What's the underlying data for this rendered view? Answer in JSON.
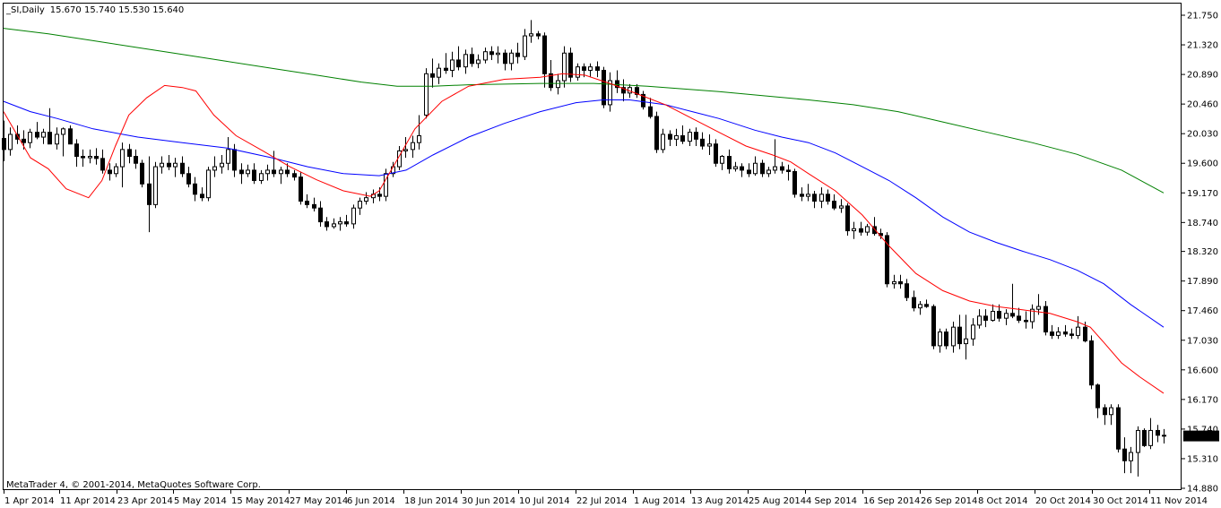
{
  "header": {
    "symbol": "_SI,Daily",
    "ohlc": "15.670 15.740 15.530 15.640"
  },
  "footer": {
    "copyright": "MetaTrader 4, © 2001-2014, MetaQuotes Software Corp."
  },
  "colors": {
    "background": "#ffffff",
    "candle": "#000000",
    "ma_fast": "#ff0000",
    "ma_mid": "#0000ff",
    "ma_slow": "#008000",
    "price_label_bg": "#000000",
    "price_label_fg": "#ffffff"
  },
  "chart_data": {
    "type": "candlestick",
    "ylim": [
      14.8,
      21.85
    ],
    "grid": false,
    "y_ticks": [
      "21.750",
      "21.320",
      "20.890",
      "20.460",
      "20.030",
      "19.600",
      "19.170",
      "18.740",
      "18.320",
      "17.890",
      "17.460",
      "17.030",
      "16.600",
      "16.170",
      "15.740",
      "15.310",
      "14.880"
    ],
    "x_ticks": [
      "1 Apr 2014",
      "11 Apr 2014",
      "23 Apr 2014",
      "5 May 2014",
      "15 May 2014",
      "27 May 2014",
      "6 Jun 2014",
      "18 Jun 2014",
      "30 Jun 2014",
      "10 Jul 2014",
      "22 Jul 2014",
      "1 Aug 2014",
      "13 Aug 2014",
      "25 Aug 2014",
      "4 Sep 2014",
      "16 Sep 2014",
      "26 Sep 2014",
      "8 Oct 2014",
      "20 Oct 2014",
      "30 Oct 2014",
      "11 Nov 2014"
    ],
    "last_price": "15.640",
    "candles": [
      [
        19.96,
        20.22,
        19.63,
        19.8
      ],
      [
        19.8,
        20.12,
        19.71,
        20.02
      ],
      [
        20.02,
        20.15,
        19.88,
        19.95
      ],
      [
        19.95,
        20.08,
        19.8,
        19.9
      ],
      [
        19.9,
        20.1,
        19.82,
        20.05
      ],
      [
        20.05,
        20.2,
        19.95,
        19.98
      ],
      [
        19.98,
        20.1,
        19.88,
        20.05
      ],
      [
        20.05,
        20.4,
        19.9,
        19.88
      ],
      [
        19.88,
        20.12,
        19.8,
        20.02
      ],
      [
        20.02,
        20.12,
        19.7,
        20.1
      ],
      [
        20.1,
        20.15,
        19.9,
        19.88
      ],
      [
        19.88,
        19.95,
        19.55,
        19.7
      ],
      [
        19.7,
        19.8,
        19.55,
        19.68
      ],
      [
        19.68,
        19.8,
        19.6,
        19.7
      ],
      [
        19.7,
        19.82,
        19.58,
        19.67
      ],
      [
        19.67,
        19.8,
        19.45,
        19.5
      ],
      [
        19.5,
        19.6,
        19.35,
        19.45
      ],
      [
        19.45,
        19.6,
        19.4,
        19.55
      ],
      [
        19.55,
        19.9,
        19.25,
        19.8
      ],
      [
        19.8,
        19.88,
        19.6,
        19.7
      ],
      [
        19.7,
        19.8,
        19.52,
        19.6
      ],
      [
        19.6,
        19.65,
        19.25,
        19.3
      ],
      [
        19.3,
        19.7,
        18.6,
        19.0
      ],
      [
        19.0,
        19.62,
        18.95,
        19.55
      ],
      [
        19.55,
        19.7,
        19.45,
        19.6
      ],
      [
        19.6,
        19.72,
        19.5,
        19.55
      ],
      [
        19.55,
        19.68,
        19.4,
        19.6
      ],
      [
        19.6,
        19.7,
        19.4,
        19.45
      ],
      [
        19.45,
        19.55,
        19.25,
        19.3
      ],
      [
        19.3,
        19.4,
        19.05,
        19.15
      ],
      [
        19.15,
        19.25,
        19.05,
        19.1
      ],
      [
        19.1,
        19.55,
        19.05,
        19.5
      ],
      [
        19.5,
        19.7,
        19.4,
        19.55
      ],
      [
        19.55,
        19.72,
        19.45,
        19.6
      ],
      [
        19.6,
        19.98,
        19.5,
        19.8
      ],
      [
        19.8,
        19.88,
        19.4,
        19.5
      ],
      [
        19.5,
        19.6,
        19.3,
        19.45
      ],
      [
        19.45,
        19.58,
        19.4,
        19.5
      ],
      [
        19.5,
        19.6,
        19.3,
        19.35
      ],
      [
        19.35,
        19.5,
        19.3,
        19.45
      ],
      [
        19.45,
        19.58,
        19.35,
        19.5
      ],
      [
        19.5,
        19.78,
        19.4,
        19.45
      ],
      [
        19.45,
        19.55,
        19.3,
        19.5
      ],
      [
        19.5,
        19.6,
        19.4,
        19.45
      ],
      [
        19.45,
        19.5,
        19.35,
        19.4
      ],
      [
        19.4,
        19.48,
        19.0,
        19.05
      ],
      [
        19.05,
        19.15,
        18.95,
        19.0
      ],
      [
        19.0,
        19.1,
        18.9,
        18.95
      ],
      [
        18.95,
        19.05,
        18.68,
        18.75
      ],
      [
        18.75,
        18.82,
        18.62,
        18.68
      ],
      [
        18.68,
        18.8,
        18.65,
        18.72
      ],
      [
        18.72,
        18.82,
        18.62,
        18.75
      ],
      [
        18.75,
        18.85,
        18.68,
        18.72
      ],
      [
        18.72,
        19.0,
        18.65,
        18.95
      ],
      [
        18.95,
        19.1,
        18.85,
        19.05
      ],
      [
        19.05,
        19.18,
        19.0,
        19.1
      ],
      [
        19.1,
        19.22,
        19.02,
        19.15
      ],
      [
        19.15,
        19.25,
        19.05,
        19.12
      ],
      [
        19.12,
        19.52,
        19.05,
        19.45
      ],
      [
        19.45,
        19.62,
        19.4,
        19.55
      ],
      [
        19.55,
        19.85,
        19.5,
        19.78
      ],
      [
        19.78,
        19.98,
        19.68,
        19.8
      ],
      [
        19.8,
        20.0,
        19.68,
        19.9
      ],
      [
        19.9,
        20.3,
        19.8,
        20.0
      ],
      [
        20.3,
        20.98,
        20.25,
        20.9
      ],
      [
        20.9,
        21.12,
        20.7,
        20.85
      ],
      [
        20.85,
        21.05,
        20.75,
        20.98
      ],
      [
        20.98,
        21.2,
        20.9,
        20.95
      ],
      [
        20.95,
        21.22,
        20.85,
        21.1
      ],
      [
        21.1,
        21.3,
        20.95,
        21.0
      ],
      [
        21.0,
        21.25,
        20.9,
        21.18
      ],
      [
        21.18,
        21.28,
        21.0,
        21.05
      ],
      [
        21.05,
        21.18,
        20.98,
        21.1
      ],
      [
        21.1,
        21.28,
        21.05,
        21.22
      ],
      [
        21.22,
        21.3,
        21.1,
        21.18
      ],
      [
        21.18,
        21.3,
        21.05,
        21.2
      ],
      [
        21.2,
        21.25,
        20.95,
        21.05
      ],
      [
        21.05,
        21.25,
        20.95,
        21.2
      ],
      [
        21.2,
        21.35,
        21.05,
        21.15
      ],
      [
        21.15,
        21.55,
        21.1,
        21.45
      ],
      [
        21.45,
        21.68,
        21.35,
        21.48
      ],
      [
        21.48,
        21.52,
        21.4,
        21.45
      ],
      [
        21.45,
        21.5,
        20.7,
        20.9
      ],
      [
        20.9,
        21.1,
        20.65,
        20.7
      ],
      [
        20.7,
        20.9,
        20.6,
        20.8
      ],
      [
        20.8,
        21.3,
        20.7,
        21.2
      ],
      [
        21.2,
        21.28,
        20.78,
        20.85
      ],
      [
        20.85,
        21.05,
        20.8,
        21.0
      ],
      [
        21.0,
        21.05,
        20.85,
        20.95
      ],
      [
        20.95,
        21.05,
        20.85,
        21.0
      ],
      [
        21.0,
        21.08,
        20.85,
        20.95
      ],
      [
        20.95,
        21.0,
        20.4,
        20.45
      ],
      [
        20.45,
        20.92,
        20.35,
        20.8
      ],
      [
        20.8,
        20.95,
        20.62,
        20.7
      ],
      [
        20.7,
        20.82,
        20.5,
        20.62
      ],
      [
        20.62,
        20.75,
        20.55,
        20.7
      ],
      [
        20.7,
        20.75,
        20.55,
        20.6
      ],
      [
        20.6,
        20.65,
        20.38,
        20.42
      ],
      [
        20.42,
        20.55,
        20.25,
        20.28
      ],
      [
        20.28,
        20.35,
        19.75,
        19.8
      ],
      [
        19.8,
        20.1,
        19.75,
        20.02
      ],
      [
        20.02,
        20.08,
        19.85,
        19.95
      ],
      [
        19.95,
        20.1,
        19.85,
        20.0
      ],
      [
        20.0,
        20.15,
        19.88,
        19.92
      ],
      [
        19.92,
        20.1,
        19.85,
        20.05
      ],
      [
        20.05,
        20.12,
        19.85,
        19.95
      ],
      [
        19.95,
        20.05,
        19.8,
        19.85
      ],
      [
        19.85,
        20.02,
        19.72,
        19.88
      ],
      [
        19.88,
        19.95,
        19.55,
        19.6
      ],
      [
        19.6,
        19.72,
        19.5,
        19.7
      ],
      [
        19.7,
        19.8,
        19.45,
        19.52
      ],
      [
        19.52,
        19.62,
        19.48,
        19.55
      ],
      [
        19.55,
        19.6,
        19.4,
        19.5
      ],
      [
        19.5,
        19.6,
        19.4,
        19.45
      ],
      [
        19.45,
        19.7,
        19.42,
        19.6
      ],
      [
        19.6,
        19.65,
        19.4,
        19.45
      ],
      [
        19.45,
        19.55,
        19.4,
        19.5
      ],
      [
        19.5,
        19.95,
        19.45,
        19.55
      ],
      [
        19.55,
        19.62,
        19.45,
        19.5
      ],
      [
        19.5,
        19.58,
        19.35,
        19.48
      ],
      [
        19.48,
        19.52,
        19.1,
        19.15
      ],
      [
        19.15,
        19.25,
        19.05,
        19.12
      ],
      [
        19.12,
        19.3,
        19.05,
        19.15
      ],
      [
        19.15,
        19.2,
        18.95,
        19.05
      ],
      [
        19.05,
        19.25,
        18.95,
        19.15
      ],
      [
        19.15,
        19.22,
        19.0,
        19.05
      ],
      [
        19.05,
        19.15,
        18.92,
        18.95
      ],
      [
        18.95,
        19.08,
        18.88,
        18.98
      ],
      [
        18.98,
        19.02,
        18.55,
        18.62
      ],
      [
        18.62,
        18.75,
        18.5,
        18.65
      ],
      [
        18.65,
        18.75,
        18.55,
        18.6
      ],
      [
        18.6,
        18.72,
        18.55,
        18.68
      ],
      [
        18.68,
        18.82,
        18.55,
        18.58
      ],
      [
        18.58,
        18.65,
        18.5,
        18.55
      ],
      [
        18.55,
        18.6,
        17.8,
        17.85
      ],
      [
        17.85,
        17.98,
        17.78,
        17.88
      ],
      [
        17.88,
        17.98,
        17.78,
        17.85
      ],
      [
        17.85,
        17.92,
        17.6,
        17.65
      ],
      [
        17.65,
        17.75,
        17.45,
        17.5
      ],
      [
        17.5,
        17.6,
        17.4,
        17.55
      ],
      [
        17.55,
        17.62,
        17.5,
        17.52
      ],
      [
        17.52,
        17.55,
        16.9,
        16.95
      ],
      [
        16.95,
        17.2,
        16.85,
        17.15
      ],
      [
        17.15,
        17.2,
        16.9,
        16.95
      ],
      [
        16.95,
        17.3,
        16.85,
        17.22
      ],
      [
        17.22,
        17.4,
        16.9,
        16.98
      ],
      [
        16.98,
        17.4,
        16.75,
        17.05
      ],
      [
        17.05,
        17.35,
        16.95,
        17.25
      ],
      [
        17.25,
        17.48,
        17.2,
        17.38
      ],
      [
        17.38,
        17.48,
        17.22,
        17.32
      ],
      [
        17.32,
        17.55,
        17.3,
        17.45
      ],
      [
        17.45,
        17.55,
        17.3,
        17.35
      ],
      [
        17.35,
        17.48,
        17.25,
        17.42
      ],
      [
        17.42,
        17.85,
        17.35,
        17.38
      ],
      [
        17.38,
        17.5,
        17.28,
        17.32
      ],
      [
        17.32,
        17.45,
        17.2,
        17.3
      ],
      [
        17.3,
        17.55,
        17.2,
        17.48
      ],
      [
        17.48,
        17.7,
        17.4,
        17.52
      ],
      [
        17.52,
        17.6,
        17.1,
        17.15
      ],
      [
        17.15,
        17.25,
        17.05,
        17.1
      ],
      [
        17.1,
        17.22,
        17.05,
        17.15
      ],
      [
        17.15,
        17.25,
        17.08,
        17.12
      ],
      [
        17.12,
        17.2,
        17.05,
        17.1
      ],
      [
        17.1,
        17.38,
        17.05,
        17.22
      ],
      [
        17.22,
        17.3,
        17.0,
        17.02
      ],
      [
        17.02,
        17.1,
        16.32,
        16.38
      ],
      [
        16.38,
        16.4,
        15.9,
        16.05
      ],
      [
        16.05,
        16.1,
        15.8,
        15.95
      ],
      [
        15.95,
        16.1,
        15.8,
        16.05
      ],
      [
        16.05,
        16.1,
        15.4,
        15.45
      ],
      [
        15.45,
        15.62,
        15.1,
        15.28
      ],
      [
        15.28,
        15.48,
        15.1,
        15.4
      ],
      [
        15.4,
        15.78,
        15.05,
        15.72
      ],
      [
        15.72,
        15.75,
        15.48,
        15.5
      ],
      [
        15.5,
        15.9,
        15.45,
        15.72
      ],
      [
        15.72,
        15.8,
        15.55,
        15.65
      ],
      [
        15.65,
        15.74,
        15.53,
        15.64
      ]
    ],
    "ma_fast": [
      [
        0,
        20.35
      ],
      [
        30,
        19.68
      ],
      [
        50,
        19.52
      ],
      [
        70,
        19.23
      ],
      [
        95,
        19.1
      ],
      [
        110,
        19.35
      ],
      [
        125,
        19.85
      ],
      [
        140,
        20.3
      ],
      [
        160,
        20.55
      ],
      [
        180,
        20.73
      ],
      [
        200,
        20.7
      ],
      [
        215,
        20.65
      ],
      [
        235,
        20.3
      ],
      [
        260,
        20.0
      ],
      [
        290,
        19.78
      ],
      [
        320,
        19.55
      ],
      [
        350,
        19.36
      ],
      [
        380,
        19.2
      ],
      [
        410,
        19.12
      ],
      [
        420,
        19.2
      ],
      [
        440,
        19.65
      ],
      [
        460,
        20.1
      ],
      [
        490,
        20.5
      ],
      [
        520,
        20.72
      ],
      [
        560,
        20.82
      ],
      [
        600,
        20.85
      ],
      [
        625,
        20.9
      ],
      [
        650,
        20.88
      ],
      [
        680,
        20.75
      ],
      [
        710,
        20.6
      ],
      [
        740,
        20.45
      ],
      [
        770,
        20.25
      ],
      [
        800,
        20.05
      ],
      [
        830,
        19.85
      ],
      [
        860,
        19.72
      ],
      [
        880,
        19.62
      ],
      [
        900,
        19.45
      ],
      [
        930,
        19.2
      ],
      [
        960,
        18.85
      ],
      [
        990,
        18.4
      ],
      [
        1020,
        18.0
      ],
      [
        1050,
        17.75
      ],
      [
        1080,
        17.6
      ],
      [
        1110,
        17.52
      ],
      [
        1140,
        17.47
      ],
      [
        1170,
        17.42
      ],
      [
        1200,
        17.3
      ],
      [
        1215,
        17.22
      ],
      [
        1230,
        17.0
      ],
      [
        1250,
        16.7
      ],
      [
        1270,
        16.5
      ],
      [
        1297,
        16.26
      ]
    ],
    "ma_mid": [
      [
        0,
        20.5
      ],
      [
        30,
        20.35
      ],
      [
        60,
        20.25
      ],
      [
        100,
        20.1
      ],
      [
        150,
        19.98
      ],
      [
        200,
        19.9
      ],
      [
        250,
        19.82
      ],
      [
        300,
        19.68
      ],
      [
        340,
        19.55
      ],
      [
        380,
        19.45
      ],
      [
        420,
        19.42
      ],
      [
        450,
        19.5
      ],
      [
        480,
        19.72
      ],
      [
        520,
        19.98
      ],
      [
        560,
        20.18
      ],
      [
        600,
        20.35
      ],
      [
        640,
        20.48
      ],
      [
        670,
        20.52
      ],
      [
        700,
        20.52
      ],
      [
        740,
        20.45
      ],
      [
        770,
        20.35
      ],
      [
        800,
        20.25
      ],
      [
        840,
        20.08
      ],
      [
        870,
        19.98
      ],
      [
        900,
        19.9
      ],
      [
        930,
        19.75
      ],
      [
        960,
        19.55
      ],
      [
        990,
        19.35
      ],
      [
        1020,
        19.1
      ],
      [
        1050,
        18.82
      ],
      [
        1080,
        18.6
      ],
      [
        1110,
        18.45
      ],
      [
        1140,
        18.32
      ],
      [
        1170,
        18.2
      ],
      [
        1200,
        18.05
      ],
      [
        1230,
        17.85
      ],
      [
        1260,
        17.55
      ],
      [
        1297,
        17.22
      ]
    ],
    "ma_slow": [
      [
        0,
        21.56
      ],
      [
        50,
        21.48
      ],
      [
        100,
        21.38
      ],
      [
        150,
        21.28
      ],
      [
        200,
        21.18
      ],
      [
        250,
        21.08
      ],
      [
        300,
        20.98
      ],
      [
        350,
        20.88
      ],
      [
        400,
        20.78
      ],
      [
        440,
        20.72
      ],
      [
        480,
        20.72
      ],
      [
        520,
        20.74
      ],
      [
        560,
        20.75
      ],
      [
        600,
        20.76
      ],
      [
        660,
        20.76
      ],
      [
        720,
        20.72
      ],
      [
        760,
        20.68
      ],
      [
        800,
        20.64
      ],
      [
        850,
        20.58
      ],
      [
        900,
        20.52
      ],
      [
        950,
        20.45
      ],
      [
        1000,
        20.35
      ],
      [
        1050,
        20.2
      ],
      [
        1100,
        20.05
      ],
      [
        1150,
        19.9
      ],
      [
        1200,
        19.73
      ],
      [
        1250,
        19.5
      ],
      [
        1297,
        19.17
      ]
    ]
  }
}
